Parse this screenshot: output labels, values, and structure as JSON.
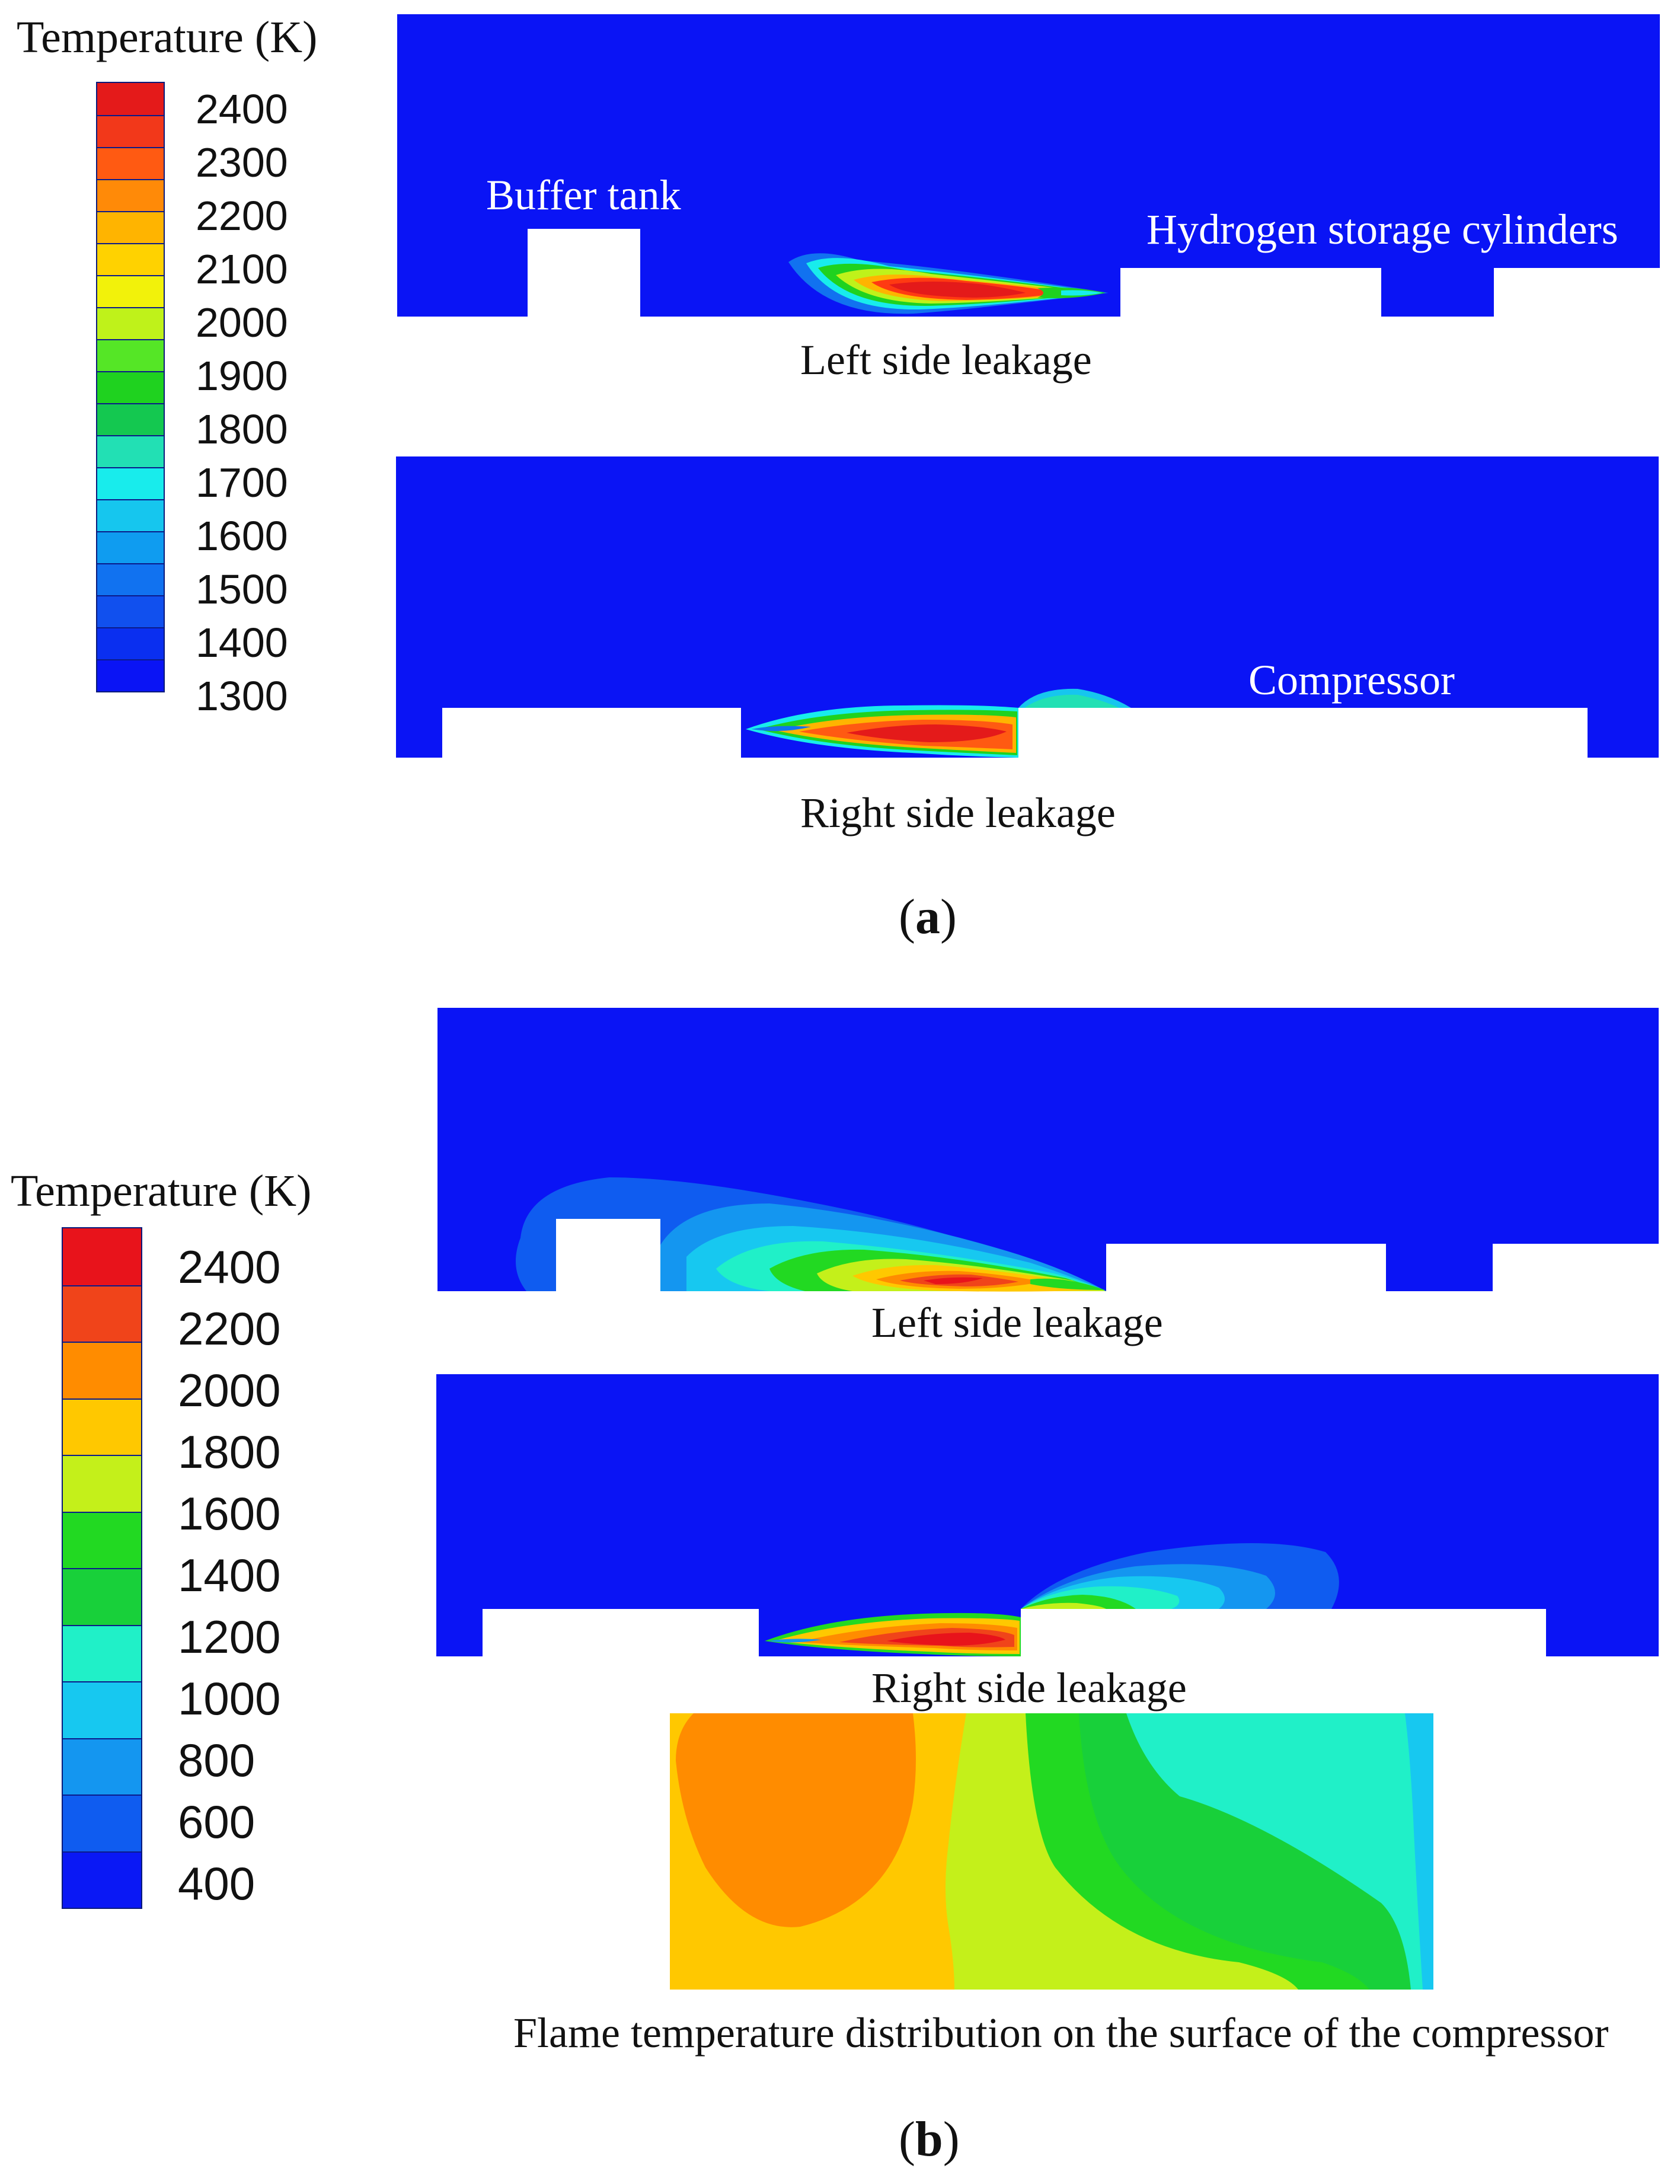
{
  "legend_a": {
    "title": "Temperature (K)",
    "ticks": [
      "2400",
      "2300",
      "2200",
      "2100",
      "2000",
      "1900",
      "1800",
      "1700",
      "1600",
      "1500",
      "1400",
      "1300"
    ],
    "colors": [
      "#e41a1a",
      "#f2381a",
      "#ff5a12",
      "#ff8a08",
      "#ffb400",
      "#ffd200",
      "#f2f20a",
      "#bff21a",
      "#55e626",
      "#1fd21f",
      "#14c850",
      "#22e0b4",
      "#18ecec",
      "#16c6ee",
      "#0f9cf0",
      "#1172f0",
      "#1150ee",
      "#0a2ff0",
      "#0a14f5"
    ]
  },
  "legend_b": {
    "title": "Temperature (K)",
    "ticks": [
      "2400",
      "2200",
      "2000",
      "1800",
      "1600",
      "1400",
      "1200",
      "1000",
      "800",
      "600",
      "400"
    ],
    "colors": [
      "#e8131b",
      "#f0441a",
      "#ff8c00",
      "#ffc800",
      "#c4f01a",
      "#22d922",
      "#18d03a",
      "#20f0c8",
      "#17c8f0",
      "#1496f0",
      "#0f5cf0",
      "#0a18f5"
    ]
  },
  "panel_a": {
    "labels": {
      "buffer_tank": "Buffer tank",
      "storage": "Hydrogen storage cylinders",
      "left_leak": "Left side leakage",
      "compressor": "Compressor",
      "right_leak": "Right side leakage"
    },
    "sublabel": "a"
  },
  "panel_b": {
    "labels": {
      "left_leak": "Left side leakage",
      "right_leak": "Right side leakage",
      "surface": "Flame temperature distribution on the surface of the compressor"
    },
    "sublabel": "b"
  },
  "colors": {
    "field_blue": "#0a14f5"
  }
}
